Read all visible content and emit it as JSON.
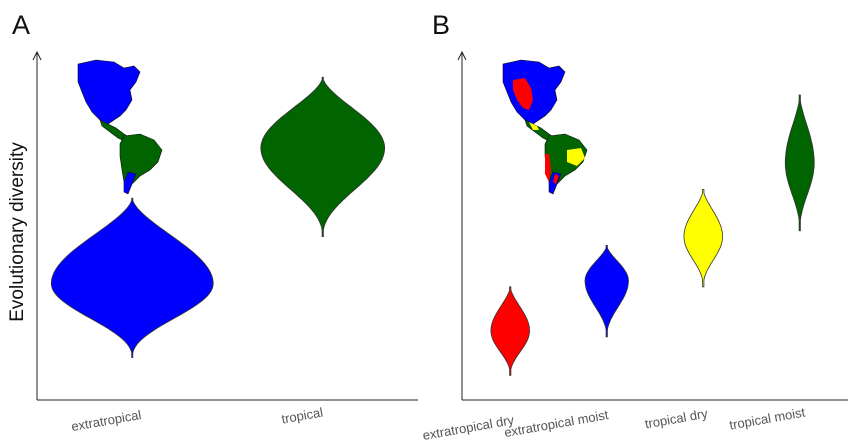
{
  "figure": {
    "ylabel": "Evolutionary diversity"
  },
  "chart_data": [
    {
      "type": "violin",
      "panel": "A",
      "title": "",
      "xlabel": "",
      "ylabel": "Evolutionary diversity",
      "categories": [
        "extratropical",
        "tropical"
      ],
      "colors": [
        "#0000ff",
        "#006400"
      ],
      "ylim": [
        0,
        1
      ],
      "violins": [
        {
          "category": "extratropical",
          "min": 0.11,
          "mode": 0.36,
          "max": 0.65,
          "max_width": 0.85
        },
        {
          "category": "tropical",
          "min": 0.52,
          "mode": 0.82,
          "max": 1.06,
          "max_width": 0.65
        }
      ],
      "inset": "Americas map colored by region: extratropical (blue), tropical (green)"
    },
    {
      "type": "violin",
      "panel": "B",
      "title": "",
      "xlabel": "",
      "ylabel": "",
      "categories": [
        "extratropical dry",
        "extratropical moist",
        "tropical dry",
        "tropical moist"
      ],
      "colors": [
        "#ff0000",
        "#0000ff",
        "#ffff00",
        "#006400"
      ],
      "ylim": [
        0,
        1
      ],
      "violins": [
        {
          "category": "extratropical dry",
          "min": 0.05,
          "mode": 0.2,
          "max": 0.35,
          "max_width": 0.4
        },
        {
          "category": "extratropical moist",
          "min": 0.18,
          "mode": 0.37,
          "max": 0.49,
          "max_width": 0.45
        },
        {
          "category": "tropical dry",
          "min": 0.35,
          "mode": 0.52,
          "max": 0.68,
          "max_width": 0.4
        },
        {
          "category": "tropical moist",
          "min": 0.54,
          "mode": 0.77,
          "max": 1.0,
          "max_width": 0.3
        }
      ],
      "inset": "Americas map colored by region: extratropical dry (red), extratropical moist (blue), tropical dry (yellow), tropical moist (green)"
    }
  ]
}
